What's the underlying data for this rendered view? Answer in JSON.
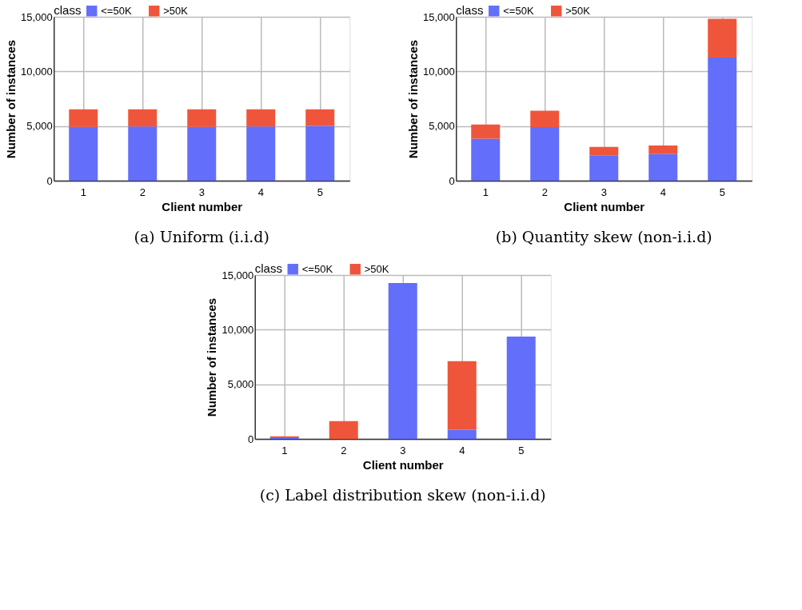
{
  "chart_data": [
    {
      "type": "bar",
      "stacked": true,
      "title": "(a) Uniform (i.i.d)",
      "xlabel": "Client number",
      "ylabel": "Number of instances",
      "legend_title": "class",
      "legend": "top",
      "grid": true,
      "categories": [
        "1",
        "2",
        "3",
        "4",
        "5"
      ],
      "ylim": [
        0,
        15000
      ],
      "yticks": [
        0,
        {
          "value": 5000,
          "label": "5,000"
        },
        {
          "value": 10000,
          "label": "10,000"
        },
        {
          "value": 15000,
          "label": "15,000"
        }
      ],
      "series": [
        {
          "name": "<=50K",
          "color": "#636efa",
          "values": [
            4920,
            4950,
            4920,
            4950,
            5010
          ]
        },
        {
          "name": ">50K",
          "color": "#ef553b",
          "values": [
            1610,
            1580,
            1610,
            1580,
            1520
          ]
        }
      ]
    },
    {
      "type": "bar",
      "stacked": true,
      "title": "(b) Quantity skew (non-i.i.d)",
      "xlabel": "Client number",
      "ylabel": "Number of instances",
      "legend_title": "class",
      "legend": "top",
      "grid": true,
      "categories": [
        "1",
        "2",
        "3",
        "4",
        "5"
      ],
      "ylim": [
        0,
        15000
      ],
      "yticks": [
        0,
        {
          "value": 5000,
          "label": "5,000"
        },
        {
          "value": 10000,
          "label": "10,000"
        },
        {
          "value": 15000,
          "label": "15,000"
        }
      ],
      "series": [
        {
          "name": "<=50K",
          "color": "#636efa",
          "values": [
            3840,
            4900,
            2320,
            2430,
            11260
          ]
        },
        {
          "name": ">50K",
          "color": "#ef553b",
          "values": [
            1300,
            1500,
            770,
            790,
            3550
          ]
        }
      ]
    },
    {
      "type": "bar",
      "stacked": true,
      "title": "(c) Label distribution skew (non-i.i.d)",
      "xlabel": "Client number",
      "ylabel": "Number of instances",
      "legend_title": "class",
      "legend": "top",
      "grid": true,
      "categories": [
        "1",
        "2",
        "3",
        "4",
        "5"
      ],
      "ylim": [
        0,
        15000
      ],
      "yticks": [
        0,
        {
          "value": 5000,
          "label": "5,000"
        },
        {
          "value": 10000,
          "label": "10,000"
        },
        {
          "value": 15000,
          "label": "15,000"
        }
      ],
      "series": [
        {
          "name": "<=50K",
          "color": "#636efa",
          "values": [
            150,
            0,
            14270,
            840,
            9370
          ]
        },
        {
          "name": ">50K",
          "color": "#ef553b",
          "values": [
            90,
            1630,
            0,
            6280,
            0
          ]
        }
      ]
    }
  ]
}
